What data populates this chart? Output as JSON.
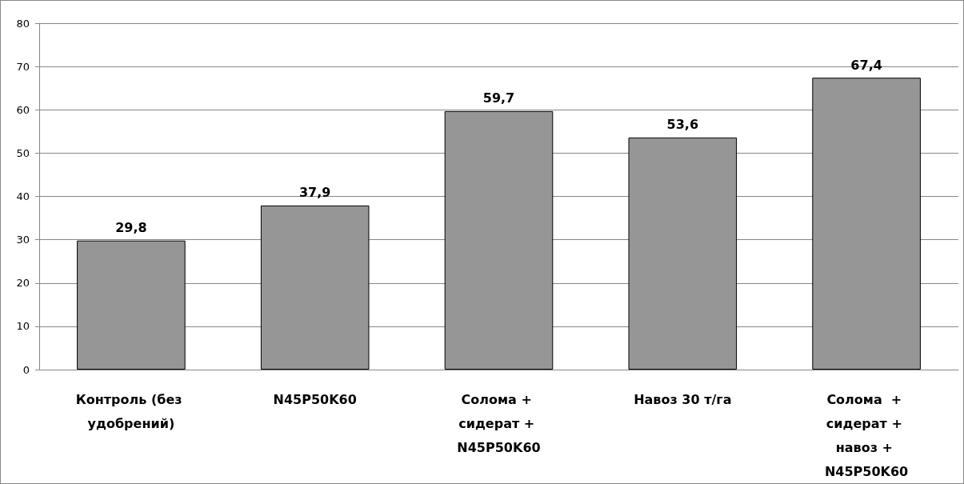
{
  "chart_data": {
    "type": "bar",
    "categories": [
      "Контроль (без удобрений)",
      "N45P50K60",
      "Солома + сидерат + N45P50K60",
      "Навоз 30 т/га",
      "Солома  + сидерат + навоз + N45P50K60"
    ],
    "values": [
      29.8,
      37.9,
      59.7,
      53.6,
      67.4
    ],
    "value_labels": [
      "29,8",
      "37,9",
      "59,7",
      "53,6",
      "67,4"
    ],
    "color": "#969696",
    "ylim": [
      0,
      80
    ],
    "yticks": [
      0,
      10,
      20,
      30,
      40,
      50,
      60,
      70,
      80
    ],
    "grid": "y"
  }
}
